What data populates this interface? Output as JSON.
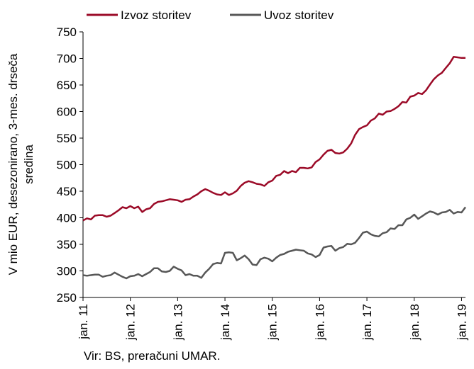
{
  "chart_data": {
    "type": "line",
    "ylabel_lines": [
      "V mio EUR, desezonirano, 3-mes. drseča",
      "sredina"
    ],
    "ylim": [
      250,
      750
    ],
    "yticks": [
      250,
      300,
      350,
      400,
      450,
      500,
      550,
      600,
      650,
      700,
      750
    ],
    "xlim": [
      "2011-01",
      "2019-02"
    ],
    "xticks": [
      {
        "label": "jan. 11",
        "date": "2011-01"
      },
      {
        "label": "jan. 12",
        "date": "2012-01"
      },
      {
        "label": "jan. 13",
        "date": "2013-01"
      },
      {
        "label": "jan. 14",
        "date": "2014-01"
      },
      {
        "label": "jan. 15",
        "date": "2015-01"
      },
      {
        "label": "jan. 16",
        "date": "2016-01"
      },
      {
        "label": "jan. 17",
        "date": "2017-01"
      },
      {
        "label": "jan. 18",
        "date": "2018-01"
      },
      {
        "label": "jan. 19",
        "date": "2019-01"
      }
    ],
    "grid": false,
    "legend_position": "top",
    "series": [
      {
        "name": "Izvoz storitev",
        "color": "#9b0a27",
        "points": [
          [
            "2011-01",
            395
          ],
          [
            "2011-02",
            399
          ],
          [
            "2011-03",
            397
          ],
          [
            "2011-04",
            404
          ],
          [
            "2011-05",
            405
          ],
          [
            "2011-06",
            405
          ],
          [
            "2011-07",
            402
          ],
          [
            "2011-08",
            404
          ],
          [
            "2011-09",
            409
          ],
          [
            "2011-10",
            414
          ],
          [
            "2011-11",
            420
          ],
          [
            "2011-12",
            418
          ],
          [
            "2012-01",
            422
          ],
          [
            "2012-02",
            418
          ],
          [
            "2012-03",
            421
          ],
          [
            "2012-04",
            411
          ],
          [
            "2012-05",
            416
          ],
          [
            "2012-06",
            418
          ],
          [
            "2012-07",
            426
          ],
          [
            "2012-08",
            430
          ],
          [
            "2012-09",
            431
          ],
          [
            "2012-10",
            433
          ],
          [
            "2012-11",
            435
          ],
          [
            "2012-12",
            434
          ],
          [
            "2013-01",
            433
          ],
          [
            "2013-02",
            430
          ],
          [
            "2013-03",
            434
          ],
          [
            "2013-04",
            435
          ],
          [
            "2013-05",
            440
          ],
          [
            "2013-06",
            444
          ],
          [
            "2013-07",
            450
          ],
          [
            "2013-08",
            454
          ],
          [
            "2013-09",
            451
          ],
          [
            "2013-10",
            447
          ],
          [
            "2013-11",
            444
          ],
          [
            "2013-12",
            443
          ],
          [
            "2014-01",
            448
          ],
          [
            "2014-02",
            443
          ],
          [
            "2014-03",
            446
          ],
          [
            "2014-04",
            451
          ],
          [
            "2014-05",
            460
          ],
          [
            "2014-06",
            466
          ],
          [
            "2014-07",
            469
          ],
          [
            "2014-08",
            467
          ],
          [
            "2014-09",
            464
          ],
          [
            "2014-10",
            463
          ],
          [
            "2014-11",
            460
          ],
          [
            "2014-12",
            467
          ],
          [
            "2015-01",
            470
          ],
          [
            "2015-02",
            479
          ],
          [
            "2015-03",
            481
          ],
          [
            "2015-04",
            488
          ],
          [
            "2015-05",
            484
          ],
          [
            "2015-06",
            488
          ],
          [
            "2015-07",
            486
          ],
          [
            "2015-08",
            494
          ],
          [
            "2015-09",
            494
          ],
          [
            "2015-10",
            493
          ],
          [
            "2015-11",
            495
          ],
          [
            "2015-12",
            505
          ],
          [
            "2016-01",
            510
          ],
          [
            "2016-02",
            519
          ],
          [
            "2016-03",
            526
          ],
          [
            "2016-04",
            528
          ],
          [
            "2016-05",
            522
          ],
          [
            "2016-06",
            521
          ],
          [
            "2016-07",
            523
          ],
          [
            "2016-08",
            530
          ],
          [
            "2016-09",
            540
          ],
          [
            "2016-10",
            556
          ],
          [
            "2016-11",
            567
          ],
          [
            "2016-12",
            571
          ],
          [
            "2017-01",
            574
          ],
          [
            "2017-02",
            583
          ],
          [
            "2017-03",
            587
          ],
          [
            "2017-04",
            596
          ],
          [
            "2017-05",
            594
          ],
          [
            "2017-06",
            600
          ],
          [
            "2017-07",
            601
          ],
          [
            "2017-08",
            605
          ],
          [
            "2017-09",
            610
          ],
          [
            "2017-10",
            618
          ],
          [
            "2017-11",
            617
          ],
          [
            "2017-12",
            628
          ],
          [
            "2018-01",
            630
          ],
          [
            "2018-02",
            635
          ],
          [
            "2018-03",
            633
          ],
          [
            "2018-04",
            640
          ],
          [
            "2018-05",
            651
          ],
          [
            "2018-06",
            661
          ],
          [
            "2018-07",
            668
          ],
          [
            "2018-08",
            673
          ],
          [
            "2018-09",
            682
          ],
          [
            "2018-10",
            691
          ],
          [
            "2018-11",
            703
          ],
          [
            "2018-12",
            702
          ],
          [
            "2019-01",
            701
          ],
          [
            "2019-02",
            701
          ]
        ]
      },
      {
        "name": "Uvoz storitev",
        "color": "#575757",
        "points": [
          [
            "2011-01",
            292
          ],
          [
            "2011-02",
            291
          ],
          [
            "2011-03",
            292
          ],
          [
            "2011-04",
            293
          ],
          [
            "2011-05",
            293
          ],
          [
            "2011-06",
            289
          ],
          [
            "2011-07",
            291
          ],
          [
            "2011-08",
            292
          ],
          [
            "2011-09",
            297
          ],
          [
            "2011-10",
            293
          ],
          [
            "2011-11",
            289
          ],
          [
            "2011-12",
            286
          ],
          [
            "2012-01",
            290
          ],
          [
            "2012-02",
            291
          ],
          [
            "2012-03",
            294
          ],
          [
            "2012-04",
            290
          ],
          [
            "2012-05",
            294
          ],
          [
            "2012-06",
            298
          ],
          [
            "2012-07",
            305
          ],
          [
            "2012-08",
            305
          ],
          [
            "2012-09",
            299
          ],
          [
            "2012-10",
            298
          ],
          [
            "2012-11",
            300
          ],
          [
            "2012-12",
            308
          ],
          [
            "2013-01",
            304
          ],
          [
            "2013-02",
            301
          ],
          [
            "2013-03",
            292
          ],
          [
            "2013-04",
            294
          ],
          [
            "2013-05",
            291
          ],
          [
            "2013-06",
            291
          ],
          [
            "2013-07",
            287
          ],
          [
            "2013-08",
            297
          ],
          [
            "2013-09",
            304
          ],
          [
            "2013-10",
            313
          ],
          [
            "2013-11",
            315
          ],
          [
            "2013-12",
            314
          ],
          [
            "2014-01",
            334
          ],
          [
            "2014-02",
            335
          ],
          [
            "2014-03",
            334
          ],
          [
            "2014-04",
            320
          ],
          [
            "2014-05",
            324
          ],
          [
            "2014-06",
            329
          ],
          [
            "2014-07",
            322
          ],
          [
            "2014-08",
            312
          ],
          [
            "2014-09",
            311
          ],
          [
            "2014-10",
            322
          ],
          [
            "2014-11",
            325
          ],
          [
            "2014-12",
            323
          ],
          [
            "2015-01",
            318
          ],
          [
            "2015-02",
            325
          ],
          [
            "2015-03",
            330
          ],
          [
            "2015-04",
            332
          ],
          [
            "2015-05",
            336
          ],
          [
            "2015-06",
            338
          ],
          [
            "2015-07",
            340
          ],
          [
            "2015-08",
            339
          ],
          [
            "2015-09",
            338
          ],
          [
            "2015-10",
            333
          ],
          [
            "2015-11",
            331
          ],
          [
            "2015-12",
            326
          ],
          [
            "2016-01",
            330
          ],
          [
            "2016-02",
            344
          ],
          [
            "2016-03",
            346
          ],
          [
            "2016-04",
            347
          ],
          [
            "2016-05",
            338
          ],
          [
            "2016-06",
            343
          ],
          [
            "2016-07",
            345
          ],
          [
            "2016-08",
            351
          ],
          [
            "2016-09",
            350
          ],
          [
            "2016-10",
            353
          ],
          [
            "2016-11",
            362
          ],
          [
            "2016-12",
            372
          ],
          [
            "2017-01",
            374
          ],
          [
            "2017-02",
            369
          ],
          [
            "2017-03",
            366
          ],
          [
            "2017-04",
            365
          ],
          [
            "2017-05",
            371
          ],
          [
            "2017-06",
            373
          ],
          [
            "2017-07",
            380
          ],
          [
            "2017-08",
            379
          ],
          [
            "2017-09",
            386
          ],
          [
            "2017-10",
            386
          ],
          [
            "2017-11",
            397
          ],
          [
            "2017-12",
            400
          ],
          [
            "2018-01",
            406
          ],
          [
            "2018-02",
            398
          ],
          [
            "2018-03",
            403
          ],
          [
            "2018-04",
            408
          ],
          [
            "2018-05",
            412
          ],
          [
            "2018-06",
            410
          ],
          [
            "2018-07",
            406
          ],
          [
            "2018-08",
            410
          ],
          [
            "2018-09",
            411
          ],
          [
            "2018-10",
            415
          ],
          [
            "2018-11",
            408
          ],
          [
            "2018-12",
            411
          ],
          [
            "2019-01",
            410
          ],
          [
            "2019-02",
            420
          ]
        ]
      }
    ]
  },
  "source_note": "Vir: BS, preračuni UMAR."
}
